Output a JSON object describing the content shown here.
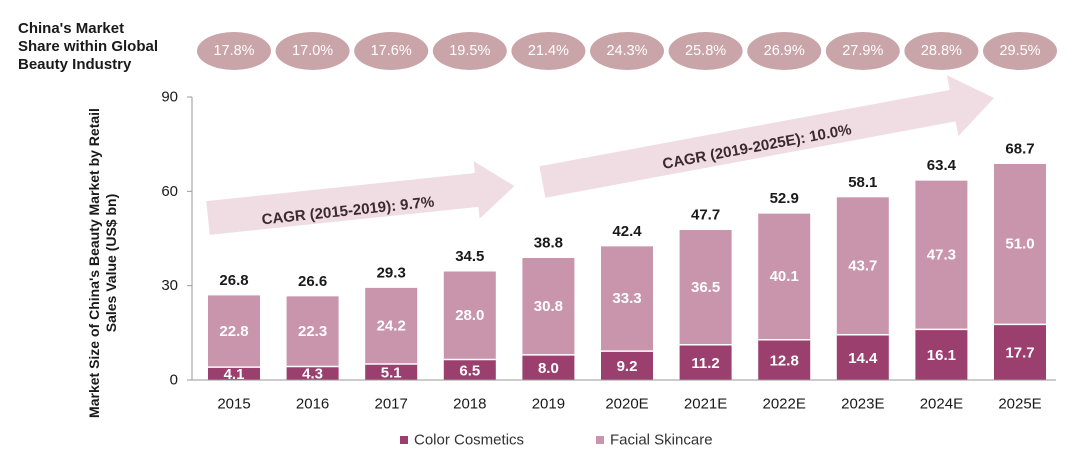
{
  "chart_data": {
    "type": "bar",
    "stacked": true,
    "categories": [
      "2015",
      "2016",
      "2017",
      "2018",
      "2019",
      "2020E",
      "2021E",
      "2022E",
      "2023E",
      "2024E",
      "2025E"
    ],
    "series": [
      {
        "name": "Color Cosmetics",
        "values": [
          4.1,
          4.3,
          5.1,
          6.5,
          8.0,
          9.2,
          11.2,
          12.8,
          14.4,
          16.1,
          17.7
        ],
        "color": "#9b3f6e"
      },
      {
        "name": "Facial Skincare",
        "values": [
          22.8,
          22.3,
          24.2,
          28.0,
          30.8,
          33.3,
          36.5,
          40.1,
          43.7,
          47.3,
          51.0
        ],
        "color": "#c995ad"
      }
    ],
    "totals": [
      26.8,
      26.6,
      29.3,
      34.5,
      38.8,
      42.4,
      47.7,
      52.9,
      58.1,
      63.4,
      68.7
    ],
    "value_labels": {
      "Color Cosmetics": [
        "4.1",
        "4.3",
        "5.1",
        "6.5",
        "8.0",
        "9.2",
        "11.2",
        "12.8",
        "14.4",
        "16.1",
        "17.7"
      ],
      "Facial Skincare": [
        "22.8",
        "22.3",
        "24.2",
        "28.0",
        "30.8",
        "33.3",
        "36.5",
        "40.1",
        "43.7",
        "47.3",
        "51.0"
      ],
      "totals": [
        "26.8",
        "26.6",
        "29.3",
        "34.5",
        "38.8",
        "42.4",
        "47.7",
        "52.9",
        "58.1",
        "63.4",
        "68.7"
      ]
    },
    "ylabel": "Market Size of China's Beauty Market by Retail Sales Value (US$ bn)",
    "ylim": [
      0,
      90
    ],
    "yticks": [
      0,
      30,
      60,
      90
    ],
    "ytick_labels": [
      "0",
      "30",
      "60",
      "90"
    ],
    "grid": false,
    "legend_position": "bottom-center",
    "share_label": "China's Market Share within Global Beauty Industry",
    "share_values": [
      "17.8%",
      "17.0%",
      "17.6%",
      "19.5%",
      "21.4%",
      "24.3%",
      "25.8%",
      "26.9%",
      "27.9%",
      "28.8%",
      "29.5%"
    ],
    "cagr_annotations": [
      {
        "text": "CAGR (2015-2019): 9.7%",
        "from": "2015",
        "to": "2019"
      },
      {
        "text": "CAGR (2019-2025E): 10.0%",
        "from": "2019",
        "to": "2025E"
      }
    ],
    "colors": {
      "pill": "#c9a4a8",
      "arrow": "#f0dde3",
      "axis": "#999999"
    }
  }
}
